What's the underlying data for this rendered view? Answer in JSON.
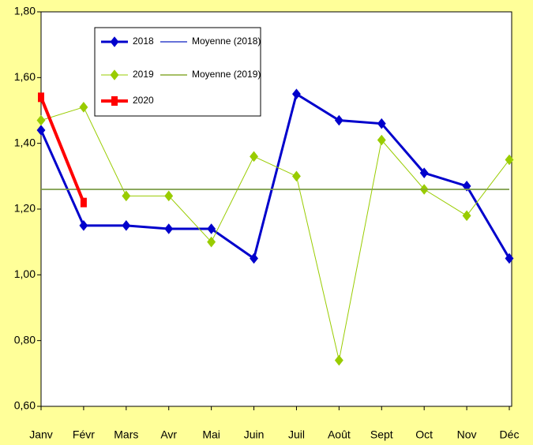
{
  "chart_data": {
    "type": "line",
    "categories": [
      "Janv",
      "Févr",
      "Mars",
      "Avr",
      "Mai",
      "Juin",
      "Juil",
      "Août",
      "Sept",
      "Oct",
      "Nov",
      "Déc"
    ],
    "series": [
      {
        "name": "2018",
        "color": "#0000cc",
        "marker": "diamond",
        "width": 3,
        "values": [
          1.44,
          1.15,
          1.15,
          1.14,
          1.14,
          1.05,
          1.55,
          1.47,
          1.46,
          1.31,
          1.27,
          1.05
        ]
      },
      {
        "name": "Moyenne (2018)",
        "color": "#3344cc",
        "marker": "none",
        "width": 1.5,
        "values": [
          1.26,
          1.26,
          1.26,
          1.26,
          1.26,
          1.26,
          1.26,
          1.26,
          1.26,
          1.26,
          1.26,
          1.26
        ]
      },
      {
        "name": "2019",
        "color": "#99cc00",
        "marker": "diamond",
        "width": 1,
        "values": [
          1.47,
          1.51,
          1.24,
          1.24,
          1.1,
          1.36,
          1.3,
          0.74,
          1.41,
          1.26,
          1.18,
          1.35
        ]
      },
      {
        "name": "Moyenne (2019)",
        "color": "#88aa33",
        "marker": "none",
        "width": 1.5,
        "values": [
          1.26,
          1.26,
          1.26,
          1.26,
          1.26,
          1.26,
          1.26,
          1.26,
          1.26,
          1.26,
          1.26,
          1.26
        ]
      },
      {
        "name": "2020",
        "color": "#ff0000",
        "marker": "square",
        "width": 4,
        "values": [
          1.54,
          1.22,
          null,
          null,
          null,
          null,
          null,
          null,
          null,
          null,
          null,
          null
        ]
      }
    ],
    "ylim": [
      0.6,
      1.8
    ],
    "yticks": [
      {
        "value": 0.6,
        "label": "0,60"
      },
      {
        "value": 0.8,
        "label": "0,80"
      },
      {
        "value": 1.0,
        "label": "1,00"
      },
      {
        "value": 1.2,
        "label": "1,20"
      },
      {
        "value": 1.4,
        "label": "1,40"
      },
      {
        "value": 1.6,
        "label": "1,60"
      },
      {
        "value": 1.8,
        "label": "1,80"
      }
    ],
    "legend": "top-left"
  }
}
